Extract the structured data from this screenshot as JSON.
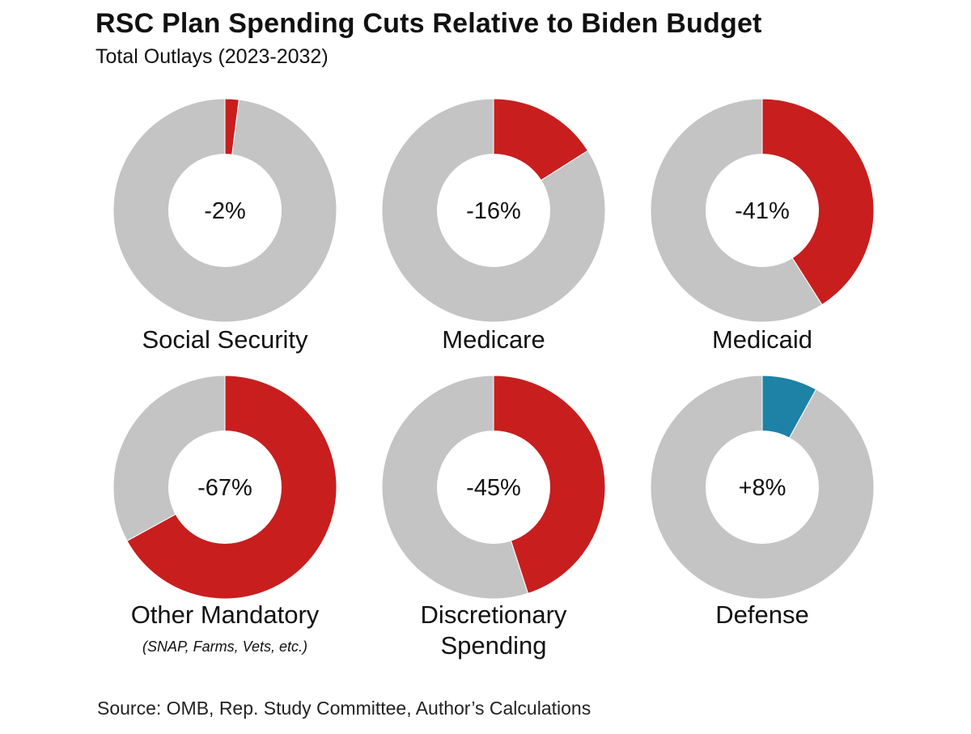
{
  "header": {
    "title": "RSC Plan Spending Cuts Relative to Biden Budget",
    "subtitle": "Total Outlays (2023-2032)"
  },
  "colors": {
    "cut": "#c81e1e",
    "increase": "#1e82a6",
    "remainder": "#c4c4c4",
    "hole": "#ffffff"
  },
  "chart_data": {
    "type": "pie",
    "variant": "donut",
    "title": "RSC Plan Spending Cuts Relative to Biden Budget",
    "subtitle": "Total Outlays (2023-2032)",
    "charts": [
      {
        "category": "Social Security",
        "note": "",
        "value": -2,
        "label": "-2%",
        "kind": "cut"
      },
      {
        "category": "Medicare",
        "note": "",
        "value": -16,
        "label": "-16%",
        "kind": "cut"
      },
      {
        "category": "Medicaid",
        "note": "",
        "value": -41,
        "label": "-41%",
        "kind": "cut"
      },
      {
        "category": "Other Mandatory",
        "note": "(SNAP, Farms, Vets, etc.)",
        "value": -67,
        "label": "-67%",
        "kind": "cut"
      },
      {
        "category": "Discretionary Spending",
        "note": "",
        "value": -45,
        "label": "-45%",
        "kind": "cut"
      },
      {
        "category": "Defense",
        "note": "",
        "value": 8,
        "label": "+8%",
        "kind": "increase"
      }
    ]
  },
  "source": "Source: OMB, Rep. Study Committee, Author’s Calculations"
}
